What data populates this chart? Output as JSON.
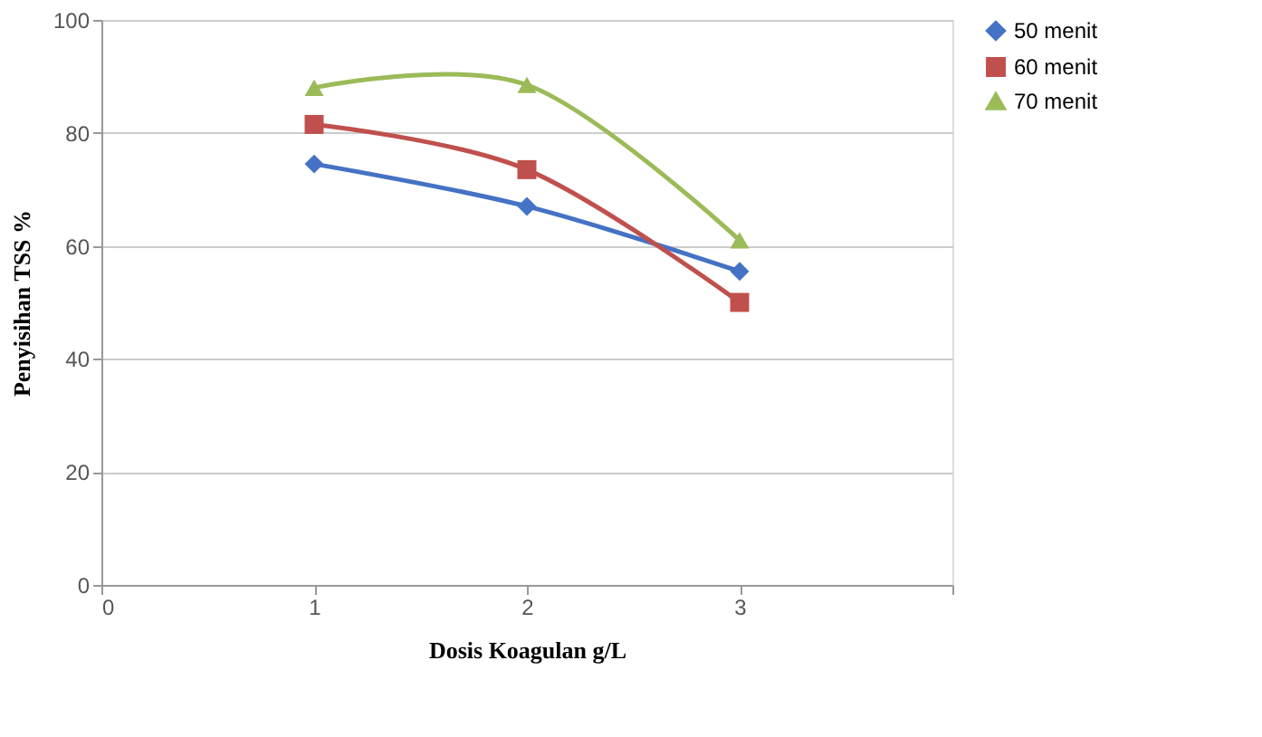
{
  "chart_data": {
    "type": "line",
    "xlabel": "Dosis Koagulan g/L",
    "ylabel": "Penyisihan TSS %",
    "x": [
      1,
      2,
      3
    ],
    "series": [
      {
        "name": "50 menit",
        "color": "#4472c4",
        "marker": "diamond",
        "values": [
          74.5,
          67,
          55.5
        ]
      },
      {
        "name": "60 menit",
        "color": "#c0504d",
        "marker": "square",
        "values": [
          81.5,
          73.5,
          50
        ]
      },
      {
        "name": "70 menit",
        "color": "#9bbb59",
        "marker": "triangle",
        "values": [
          88,
          88.5,
          61
        ]
      }
    ],
    "xlim": [
      0,
      4
    ],
    "xticks": [
      0,
      1,
      2,
      3,
      {
        "value": 4,
        "label": null
      }
    ],
    "ylim": [
      0,
      100
    ],
    "yticks": [
      0,
      20,
      40,
      60,
      80,
      100
    ],
    "grid": "y",
    "legend": "right",
    "line_style": "solid"
  }
}
